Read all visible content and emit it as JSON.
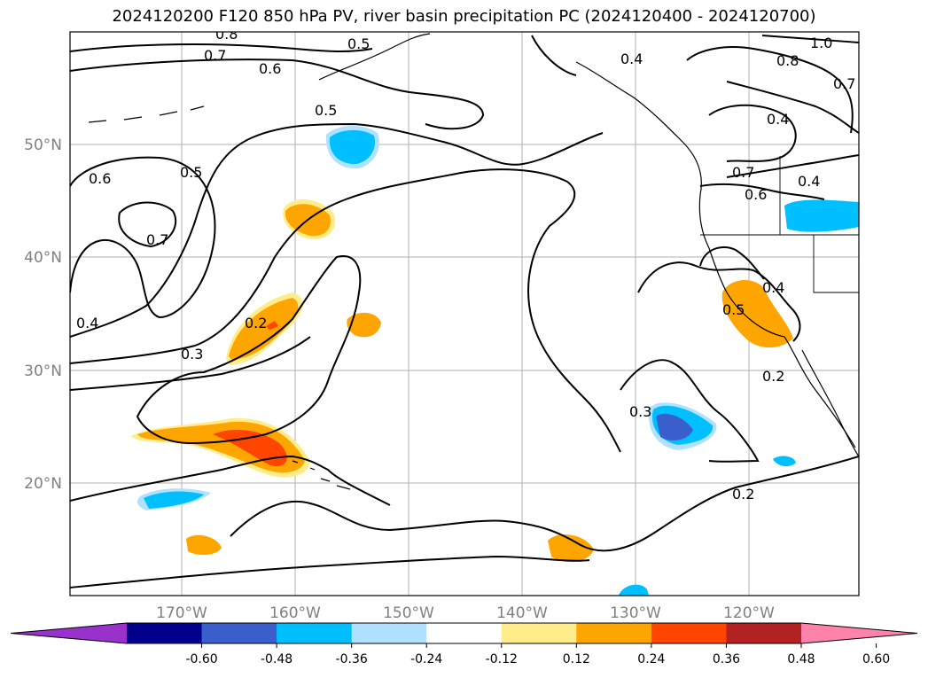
{
  "title": "2024120200 F120 850 hPa PV, river basin precipitation PC (2024120400 - 2024120700)",
  "axes": {
    "lat_ticks": [
      "50°N",
      "40°N",
      "30°N",
      "20°N"
    ],
    "lon_ticks": [
      "170°W",
      "160°W",
      "150°W",
      "140°W",
      "130°W",
      "120°W"
    ]
  },
  "contour_labels": [
    "0.8",
    "0.7",
    "0.6",
    "0.5",
    "0.4",
    "0.5",
    "0.6",
    "0.5",
    "0.7",
    "0.4",
    "0.3",
    "0.2",
    "0.3",
    "0.2",
    "0.4",
    "0.5",
    "0.7",
    "0.6",
    "0.4",
    "1.0",
    "0.8",
    "0.7",
    "0.4",
    "0.2"
  ],
  "colorbar": {
    "labels": [
      "-0.60",
      "-0.48",
      "-0.36",
      "-0.24",
      "-0.12",
      "0.12",
      "0.24",
      "0.36",
      "0.48",
      "0.60"
    ],
    "colors": [
      "#9932cc",
      "#00008b",
      "#3a5fcd",
      "#00bfff",
      "#b0e2ff",
      "#ffffff",
      "#ffec8b",
      "#ffa500",
      "#ff4500",
      "#b22222",
      "#ff82ab"
    ]
  }
}
